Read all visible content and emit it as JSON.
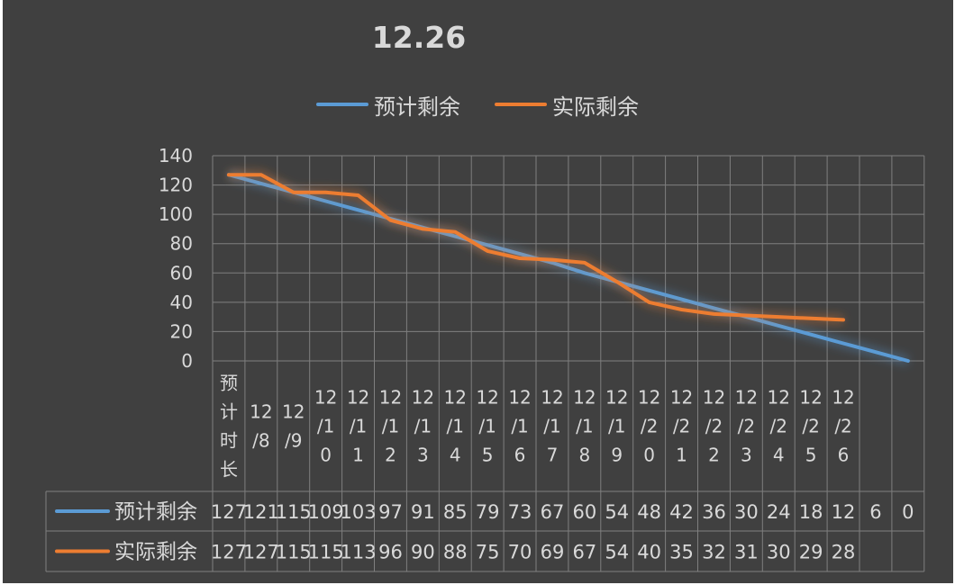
{
  "chart_data": {
    "type": "line",
    "title": "12.26",
    "categories": [
      "预计时长",
      "12/8",
      "12/9",
      "12/10",
      "12/11",
      "12/12",
      "12/13",
      "12/14",
      "12/15",
      "12/16",
      "12/17",
      "12/18",
      "12/19",
      "12/20",
      "12/21",
      "12/22",
      "12/23",
      "12/24",
      "12/25",
      "12/26",
      "",
      ""
    ],
    "category_display": [
      [
        "预",
        "计",
        "时",
        "长"
      ],
      [
        "12",
        "/8"
      ],
      [
        "12",
        "/9"
      ],
      [
        "12",
        "/1",
        "0"
      ],
      [
        "12",
        "/1",
        "1"
      ],
      [
        "12",
        "/1",
        "2"
      ],
      [
        "12",
        "/1",
        "3"
      ],
      [
        "12",
        "/1",
        "4"
      ],
      [
        "12",
        "/1",
        "5"
      ],
      [
        "12",
        "/1",
        "6"
      ],
      [
        "12",
        "/1",
        "7"
      ],
      [
        "12",
        "/1",
        "8"
      ],
      [
        "12",
        "/1",
        "9"
      ],
      [
        "12",
        "/2",
        "0"
      ],
      [
        "12",
        "/2",
        "1"
      ],
      [
        "12",
        "/2",
        "2"
      ],
      [
        "12",
        "/2",
        "3"
      ],
      [
        "12",
        "/2",
        "4"
      ],
      [
        "12",
        "/2",
        "5"
      ],
      [
        "12",
        "/2",
        "6"
      ],
      [],
      []
    ],
    "series": [
      {
        "name": "预计剩余",
        "color": "#5b9bd5",
        "values": [
          127,
          121,
          115,
          109,
          103,
          97,
          91,
          85,
          79,
          73,
          67,
          60,
          54,
          48,
          42,
          36,
          30,
          24,
          18,
          12,
          6,
          0
        ]
      },
      {
        "name": "实际剩余",
        "color": "#ed7d31",
        "values": [
          127,
          127,
          115,
          115,
          113,
          96,
          90,
          88,
          75,
          70,
          69,
          67,
          54,
          40,
          35,
          32,
          31,
          30,
          29,
          28,
          null,
          null
        ]
      }
    ],
    "ylim": [
      0,
      140
    ],
    "yticks": [
      0,
      20,
      40,
      60,
      80,
      100,
      120,
      140
    ],
    "xlabel": "",
    "ylabel": "",
    "grid": true,
    "legend_position": "top",
    "data_table": true
  },
  "colors": {
    "background": "#404040",
    "grid": "#7f7f7f",
    "text": "#d9d9d9"
  }
}
